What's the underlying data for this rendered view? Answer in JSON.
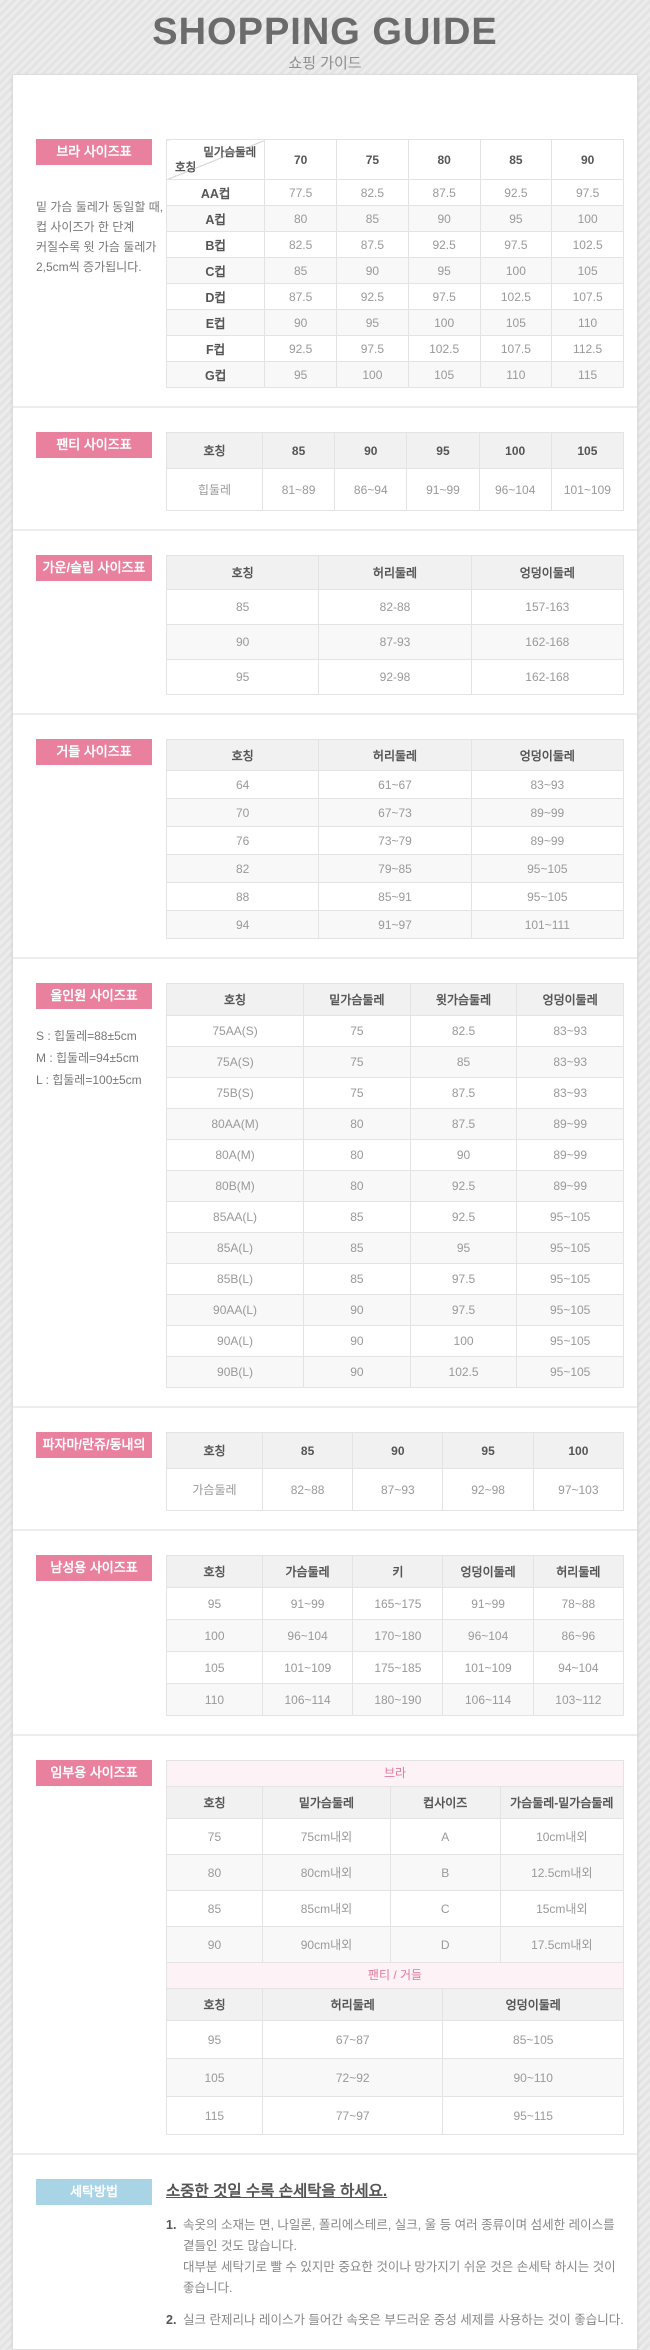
{
  "page": {
    "title": "SHOPPING GUIDE",
    "subtitle": "쇼핑 가이드"
  },
  "colors": {
    "accent_pink": "#e8809e",
    "accent_blue": "#a9d4e6",
    "subheader_pink_bg": "#fdf3f6",
    "subheader_pink_text": "#e0799a"
  },
  "sections": {
    "bra": {
      "label": "브라 사이즈표",
      "note_lines": [
        "밑 가슴 둘레가 동일할 때,",
        "컵 사이즈가 한 단계",
        "커질수록 윗 가슴 둘레가",
        "2,5cm씩 증가됩니다."
      ],
      "table": {
        "diagonal": {
          "top": "밑가슴둘레",
          "bottom": "호칭"
        },
        "columns": [
          "70",
          "75",
          "80",
          "85",
          "90"
        ],
        "rows": [
          [
            "AA컵",
            "77.5",
            "82.5",
            "87.5",
            "92.5",
            "97.5"
          ],
          [
            "A컵",
            "80",
            "85",
            "90",
            "95",
            "100"
          ],
          [
            "B컵",
            "82.5",
            "87.5",
            "92.5",
            "97.5",
            "102.5"
          ],
          [
            "C컵",
            "85",
            "90",
            "95",
            "100",
            "105"
          ],
          [
            "D컵",
            "87.5",
            "92.5",
            "97.5",
            "102.5",
            "107.5"
          ],
          [
            "E컵",
            "90",
            "95",
            "100",
            "105",
            "110"
          ],
          [
            "F컵",
            "92.5",
            "97.5",
            "102.5",
            "107.5",
            "112.5"
          ],
          [
            "G컵",
            "95",
            "100",
            "105",
            "110",
            "115"
          ]
        ]
      }
    },
    "panty": {
      "label": "팬티 사이즈표",
      "table": {
        "headers": [
          "호칭",
          "85",
          "90",
          "95",
          "100",
          "105"
        ],
        "rows": [
          [
            "힙둘레",
            "81~89",
            "86~94",
            "91~99",
            "96~104",
            "101~109"
          ]
        ]
      }
    },
    "gown": {
      "label": "가운/슬립 사이즈표",
      "table": {
        "headers": [
          "호칭",
          "허리둘레",
          "엉덩이둘레"
        ],
        "rows": [
          [
            "85",
            "82-88",
            "157-163"
          ],
          [
            "90",
            "87-93",
            "162-168"
          ],
          [
            "95",
            "92-98",
            "162-168"
          ]
        ]
      }
    },
    "girdle": {
      "label": "거들 사이즈표",
      "table": {
        "headers": [
          "호칭",
          "허리둘레",
          "엉덩이둘레"
        ],
        "rows": [
          [
            "64",
            "61~67",
            "83~93"
          ],
          [
            "70",
            "67~73",
            "89~99"
          ],
          [
            "76",
            "73~79",
            "89~99"
          ],
          [
            "82",
            "79~85",
            "95~105"
          ],
          [
            "88",
            "85~91",
            "95~105"
          ],
          [
            "94",
            "91~97",
            "101~111"
          ]
        ]
      }
    },
    "allinone": {
      "label": "올인원 사이즈표",
      "note_lines": [
        "S : 힙둘레=88±5cm",
        "M : 힙둘레=94±5cm",
        "L : 힙둘레=100±5cm"
      ],
      "table": {
        "headers": [
          "호칭",
          "밑가슴둘레",
          "윗가슴둘레",
          "엉덩이둘레"
        ],
        "rows": [
          [
            "75AA(S)",
            "75",
            "82.5",
            "83~93"
          ],
          [
            "75A(S)",
            "75",
            "85",
            "83~93"
          ],
          [
            "75B(S)",
            "75",
            "87.5",
            "83~93"
          ],
          [
            "80AA(M)",
            "80",
            "87.5",
            "89~99"
          ],
          [
            "80A(M)",
            "80",
            "90",
            "89~99"
          ],
          [
            "80B(M)",
            "80",
            "92.5",
            "89~99"
          ],
          [
            "85AA(L)",
            "85",
            "92.5",
            "95~105"
          ],
          [
            "85A(L)",
            "85",
            "95",
            "95~105"
          ],
          [
            "85B(L)",
            "85",
            "97.5",
            "95~105"
          ],
          [
            "90AA(L)",
            "90",
            "97.5",
            "95~105"
          ],
          [
            "90A(L)",
            "90",
            "100",
            "95~105"
          ],
          [
            "90B(L)",
            "90",
            "102.5",
            "95~105"
          ]
        ]
      }
    },
    "pajama": {
      "label": "파자마/란쥬/동내의",
      "table": {
        "headers": [
          "호칭",
          "85",
          "90",
          "95",
          "100"
        ],
        "rows": [
          [
            "가슴둘레",
            "82~88",
            "87~93",
            "92~98",
            "97~103"
          ]
        ]
      }
    },
    "mens": {
      "label": "남성용 사이즈표",
      "table": {
        "headers": [
          "호칭",
          "가슴둘레",
          "키",
          "엉덩이둘레",
          "허리둘레"
        ],
        "rows": [
          [
            "95",
            "91~99",
            "165~175",
            "91~99",
            "78~88"
          ],
          [
            "100",
            "96~104",
            "170~180",
            "96~104",
            "86~96"
          ],
          [
            "105",
            "101~109",
            "175~185",
            "101~109",
            "94~104"
          ],
          [
            "110",
            "106~114",
            "180~190",
            "106~114",
            "103~112"
          ]
        ]
      }
    },
    "maternity": {
      "label": "임부용 사이즈표",
      "bra_subheader": "브라",
      "bra_table": {
        "headers": [
          "호칭",
          "밑가슴둘레",
          "컵사이즈",
          "가슴둘레-밑가슴둘레"
        ],
        "rows": [
          [
            "75",
            "75cm내외",
            "A",
            "10cm내외"
          ],
          [
            "80",
            "80cm내외",
            "B",
            "12.5cm내외"
          ],
          [
            "85",
            "85cm내외",
            "C",
            "15cm내외"
          ],
          [
            "90",
            "90cm내외",
            "D",
            "17.5cm내외"
          ]
        ]
      },
      "girdle_subheader": "팬티 / 거들",
      "girdle_table": {
        "headers": [
          "호칭",
          "허리둘레",
          "엉덩이둘레"
        ],
        "rows": [
          [
            "95",
            "67~87",
            "85~105"
          ],
          [
            "105",
            "72~92",
            "90~110"
          ],
          [
            "115",
            "77~97",
            "95~115"
          ]
        ]
      }
    },
    "washing": {
      "label": "세탁방법",
      "title": "소중한 것일 수록 손세탁을 하세요.",
      "items": [
        {
          "num": "1.",
          "lines": [
            "속옷의 소재는 면, 나일론, 폴리에스테르, 실크, 울 등 여러 종류이며 섬세한 레이스를 곁들인 것도 많습니다.",
            "대부분 세탁기로 빨 수 있지만 중요한 것이나 망가지기 쉬운 것은 손세탁 하시는 것이 좋습니다."
          ]
        },
        {
          "num": "2.",
          "lines": [
            "실크 란제리나 레이스가 들어간 속옷은 부드러운 중성 세제를 사용하는 것이 좋습니다."
          ]
        }
      ]
    }
  }
}
